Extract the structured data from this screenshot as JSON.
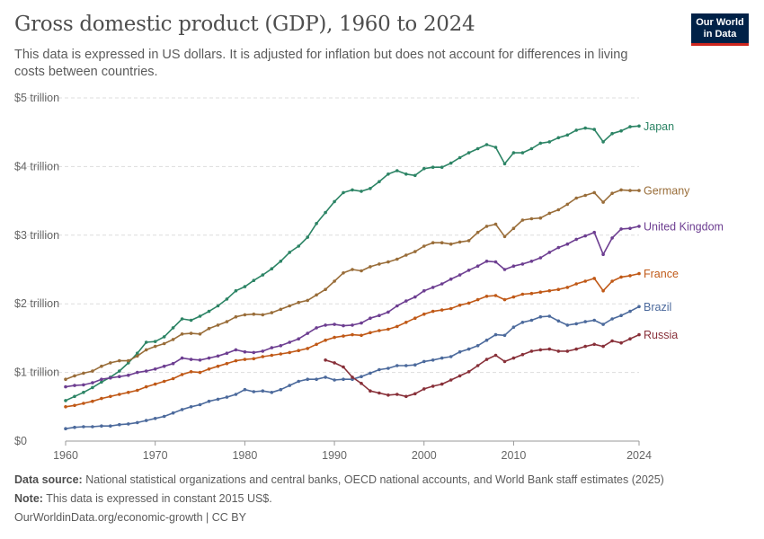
{
  "header": {
    "title": "Gross domestic product (GDP), 1960 to 2024",
    "subtitle": "This data is expressed in US dollars. It is adjusted for inflation but does not account for differences in living costs between countries.",
    "logo_line1": "Our World",
    "logo_line2": "in Data",
    "logo_bg": "#002147",
    "logo_accent": "#ce261e"
  },
  "footer": {
    "source_label": "Data source:",
    "source_text": "National statistical organizations and central banks, OECD national accounts, and World Bank staff estimates (2025)",
    "note_label": "Note:",
    "note_text": "This data is expressed in constant 2015 US$.",
    "link_text": "OurWorldinData.org/economic-growth | CC BY"
  },
  "chart_data": {
    "type": "line",
    "xlim": [
      1960,
      2024
    ],
    "ylim": [
      0,
      5
    ],
    "y_unit": "trillion US$",
    "x_ticks": [
      1960,
      1970,
      1980,
      1990,
      2000,
      2010,
      2024
    ],
    "y_ticks": [
      {
        "value": 0,
        "label": "$0"
      },
      {
        "value": 1,
        "label": "$1 trillion"
      },
      {
        "value": 2,
        "label": "$2 trillion"
      },
      {
        "value": 3,
        "label": "$3 trillion"
      },
      {
        "value": 4,
        "label": "$4 trillion"
      },
      {
        "value": 5,
        "label": "$5 trillion"
      }
    ],
    "grid": "horizontal-dashed",
    "legend": "line-end labels",
    "series": [
      {
        "name": "Japan",
        "color": "#2c8465",
        "start_year": 1960,
        "values": [
          0.59,
          0.65,
          0.71,
          0.78,
          0.86,
          0.93,
          1.02,
          1.14,
          1.28,
          1.44,
          1.45,
          1.52,
          1.65,
          1.78,
          1.76,
          1.82,
          1.89,
          1.97,
          2.07,
          2.19,
          2.25,
          2.34,
          2.42,
          2.51,
          2.62,
          2.75,
          2.84,
          2.97,
          3.17,
          3.33,
          3.49,
          3.62,
          3.66,
          3.64,
          3.68,
          3.78,
          3.89,
          3.94,
          3.89,
          3.87,
          3.97,
          3.99,
          3.99,
          4.05,
          4.13,
          4.2,
          4.26,
          4.32,
          4.28,
          4.04,
          4.2,
          4.2,
          4.26,
          4.34,
          4.36,
          4.42,
          4.46,
          4.53,
          4.56,
          4.54,
          4.36,
          4.48,
          4.52,
          4.58,
          4.59
        ]
      },
      {
        "name": "Germany",
        "color": "#996d39",
        "start_year": 1960,
        "values": [
          0.9,
          0.95,
          0.99,
          1.02,
          1.09,
          1.14,
          1.17,
          1.17,
          1.24,
          1.33,
          1.38,
          1.42,
          1.48,
          1.56,
          1.57,
          1.56,
          1.64,
          1.69,
          1.74,
          1.81,
          1.84,
          1.85,
          1.84,
          1.87,
          1.92,
          1.97,
          2.02,
          2.05,
          2.13,
          2.21,
          2.33,
          2.45,
          2.5,
          2.48,
          2.54,
          2.58,
          2.61,
          2.65,
          2.71,
          2.76,
          2.84,
          2.89,
          2.89,
          2.87,
          2.9,
          2.92,
          3.04,
          3.13,
          3.16,
          2.98,
          3.1,
          3.22,
          3.24,
          3.25,
          3.32,
          3.37,
          3.45,
          3.54,
          3.58,
          3.62,
          3.48,
          3.61,
          3.66,
          3.65,
          3.65
        ]
      },
      {
        "name": "United Kingdom",
        "color": "#6d3e91",
        "start_year": 1960,
        "values": [
          0.79,
          0.81,
          0.82,
          0.85,
          0.9,
          0.92,
          0.94,
          0.96,
          1.0,
          1.02,
          1.05,
          1.09,
          1.13,
          1.21,
          1.19,
          1.18,
          1.21,
          1.24,
          1.28,
          1.33,
          1.3,
          1.29,
          1.31,
          1.36,
          1.39,
          1.44,
          1.49,
          1.57,
          1.65,
          1.69,
          1.7,
          1.68,
          1.69,
          1.72,
          1.79,
          1.83,
          1.88,
          1.97,
          2.04,
          2.1,
          2.19,
          2.24,
          2.29,
          2.36,
          2.42,
          2.49,
          2.55,
          2.62,
          2.61,
          2.5,
          2.55,
          2.58,
          2.62,
          2.67,
          2.75,
          2.82,
          2.87,
          2.94,
          2.99,
          3.04,
          2.72,
          2.96,
          3.09,
          3.1,
          3.13
        ]
      },
      {
        "name": "France",
        "color": "#c05917",
        "start_year": 1960,
        "values": [
          0.5,
          0.52,
          0.55,
          0.58,
          0.62,
          0.65,
          0.68,
          0.71,
          0.74,
          0.79,
          0.83,
          0.87,
          0.91,
          0.97,
          1.01,
          1.0,
          1.05,
          1.09,
          1.13,
          1.17,
          1.19,
          1.2,
          1.23,
          1.25,
          1.27,
          1.29,
          1.32,
          1.35,
          1.41,
          1.47,
          1.51,
          1.53,
          1.55,
          1.54,
          1.58,
          1.61,
          1.63,
          1.67,
          1.73,
          1.79,
          1.85,
          1.89,
          1.91,
          1.93,
          1.98,
          2.01,
          2.06,
          2.11,
          2.12,
          2.06,
          2.1,
          2.14,
          2.15,
          2.17,
          2.19,
          2.21,
          2.24,
          2.29,
          2.33,
          2.37,
          2.19,
          2.33,
          2.39,
          2.41,
          2.44
        ]
      },
      {
        "name": "Brazil",
        "color": "#4c6a9c",
        "start_year": 1960,
        "values": [
          0.18,
          0.2,
          0.21,
          0.21,
          0.22,
          0.22,
          0.24,
          0.25,
          0.27,
          0.3,
          0.33,
          0.36,
          0.41,
          0.46,
          0.5,
          0.53,
          0.58,
          0.61,
          0.64,
          0.68,
          0.75,
          0.72,
          0.73,
          0.71,
          0.75,
          0.81,
          0.87,
          0.9,
          0.9,
          0.93,
          0.89,
          0.9,
          0.9,
          0.94,
          0.99,
          1.04,
          1.06,
          1.1,
          1.1,
          1.11,
          1.16,
          1.18,
          1.21,
          1.23,
          1.3,
          1.34,
          1.39,
          1.47,
          1.55,
          1.54,
          1.66,
          1.73,
          1.76,
          1.81,
          1.82,
          1.75,
          1.69,
          1.71,
          1.74,
          1.76,
          1.7,
          1.78,
          1.83,
          1.89,
          1.96
        ]
      },
      {
        "name": "Russia",
        "color": "#883039",
        "start_year": 1989,
        "values": [
          1.18,
          1.14,
          1.08,
          0.93,
          0.84,
          0.73,
          0.7,
          0.67,
          0.68,
          0.65,
          0.69,
          0.76,
          0.8,
          0.83,
          0.89,
          0.95,
          1.01,
          1.1,
          1.19,
          1.25,
          1.16,
          1.21,
          1.26,
          1.31,
          1.33,
          1.34,
          1.31,
          1.31,
          1.34,
          1.38,
          1.41,
          1.38,
          1.46,
          1.43,
          1.49,
          1.55
        ]
      }
    ]
  }
}
